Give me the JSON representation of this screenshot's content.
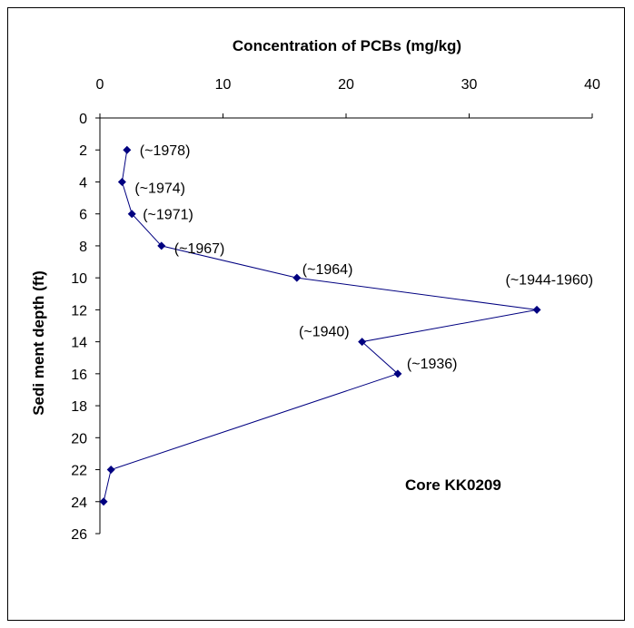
{
  "chart_data": {
    "type": "line",
    "title": "Concentration of PCBs (mg/kg)",
    "xlabel": "Concentration of PCBs (mg/kg)",
    "ylabel": "Sedi ment depth (ft)",
    "xlim": [
      0,
      40
    ],
    "ylim": [
      0,
      26
    ],
    "x_ticks": [
      0,
      10,
      20,
      30,
      40
    ],
    "y_ticks": [
      0,
      2,
      4,
      6,
      8,
      10,
      12,
      14,
      16,
      18,
      20,
      22,
      24,
      26
    ],
    "x_axis_position": "top",
    "y_inverted": true,
    "grid": false,
    "line_color": "#000080",
    "marker_color": "#000080",
    "points": [
      {
        "x": 2.2,
        "y": 2,
        "label": "(~1978)"
      },
      {
        "x": 1.8,
        "y": 4,
        "label": "(~1974)"
      },
      {
        "x": 2.6,
        "y": 6,
        "label": "(~1971)"
      },
      {
        "x": 5.0,
        "y": 8,
        "label": "(~1967)"
      },
      {
        "x": 16.0,
        "y": 10,
        "label": "(~1964)"
      },
      {
        "x": 35.5,
        "y": 12,
        "label": "(~1944-1960)"
      },
      {
        "x": 21.3,
        "y": 14,
        "label": "(~1940)"
      },
      {
        "x": 24.2,
        "y": 16,
        "label": "(~1936)"
      },
      {
        "x": 0.9,
        "y": 22,
        "label": ""
      },
      {
        "x": 0.3,
        "y": 24,
        "label": ""
      }
    ],
    "annotation": "Core KK0209"
  }
}
